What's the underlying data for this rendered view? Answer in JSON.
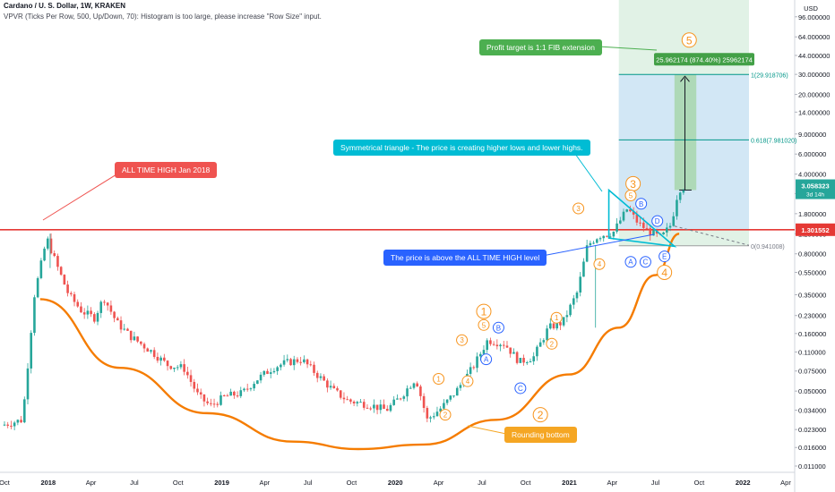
{
  "header": {
    "title": "Cardano / U. S. Dollar, 1W, KRAKEN",
    "indicator": "VPVR (Ticks Per Row, 500, Up/Down, 70): Histogram is too large, please increase \"Row Size\" input."
  },
  "colors": {
    "candle_up": "#26a69a",
    "candle_down": "#ef5350",
    "ath_line": "#e53935",
    "arc": "#f57c00",
    "wave_orange": "#f7941d",
    "wave_blue": "#2962ff",
    "triangle": "#00bcd4",
    "fib_green": "#009688",
    "target_bg": "#c8e6c9",
    "zone_blue": "#bbdefb"
  },
  "chart_data": {
    "type": "candlestick",
    "y_scale": "log",
    "ylim": [
      0.0108,
      130
    ],
    "y_axis_label_top": "USD",
    "y_ticks": [
      "96.000000",
      "64.000000",
      "44.000000",
      "30.000000",
      "20.000000",
      "14.000000",
      "9.000000",
      "6.000000",
      "4.000000",
      "2.700000",
      "1.800000",
      "1.200000",
      "0.800000",
      "0.550000",
      "0.350000",
      "0.230000",
      "0.160000",
      "0.110000",
      "0.075000",
      "0.050000",
      "0.034000",
      "0.023000",
      "0.016000",
      "0.011000"
    ],
    "x_ticks": [
      "Oct",
      "2018",
      "Apr",
      "Jul",
      "Oct",
      "2019",
      "Apr",
      "Jul",
      "Oct",
      "2020",
      "Apr",
      "Jul",
      "Oct",
      "2021",
      "Apr",
      "Jul",
      "Oct",
      "2022",
      "Apr"
    ],
    "price_path": [
      [
        "2017-10-01",
        0.025
      ],
      [
        "2017-11-15",
        0.028
      ],
      [
        "2017-12-10",
        0.35
      ],
      [
        "2018-01-05",
        1.1
      ],
      [
        "2018-01-25",
        0.65
      ],
      [
        "2018-02-20",
        0.35
      ],
      [
        "2018-03-20",
        0.25
      ],
      [
        "2018-04-15",
        0.22
      ],
      [
        "2018-05-05",
        0.33
      ],
      [
        "2018-06-01",
        0.2
      ],
      [
        "2018-07-01",
        0.15
      ],
      [
        "2018-08-15",
        0.11
      ],
      [
        "2018-09-15",
        0.085
      ],
      [
        "2018-10-20",
        0.08
      ],
      [
        "2018-11-20",
        0.045
      ],
      [
        "2018-12-15",
        0.037
      ],
      [
        "2019-01-15",
        0.045
      ],
      [
        "2019-02-20",
        0.048
      ],
      [
        "2019-03-20",
        0.062
      ],
      [
        "2019-04-25",
        0.08
      ],
      [
        "2019-05-20",
        0.088
      ],
      [
        "2019-06-25",
        0.095
      ],
      [
        "2019-07-30",
        0.068
      ],
      [
        "2019-09-01",
        0.05
      ],
      [
        "2019-10-01",
        0.041
      ],
      [
        "2019-11-15",
        0.038
      ],
      [
        "2019-12-20",
        0.034
      ],
      [
        "2020-01-20",
        0.045
      ],
      [
        "2020-02-20",
        0.065
      ],
      [
        "2020-03-15",
        0.028
      ],
      [
        "2020-04-15",
        0.036
      ],
      [
        "2020-05-15",
        0.05
      ],
      [
        "2020-06-20",
        0.082
      ],
      [
        "2020-07-20",
        0.14
      ],
      [
        "2020-08-25",
        0.13
      ],
      [
        "2020-09-25",
        0.09
      ],
      [
        "2020-10-25",
        0.1
      ],
      [
        "2020-11-25",
        0.18
      ],
      [
        "2020-12-25",
        0.2
      ],
      [
        "2021-01-25",
        0.37
      ],
      [
        "2021-02-15",
        0.95
      ],
      [
        "2021-03-10",
        1.15
      ],
      [
        "2021-04-10",
        1.23
      ],
      [
        "2021-05-10",
        2.0
      ],
      [
        "2021-06-01",
        1.5
      ],
      [
        "2021-06-25",
        1.25
      ],
      [
        "2021-07-20",
        1.1
      ],
      [
        "2021-08-10",
        1.45
      ],
      [
        "2021-08-25",
        2.9
      ],
      [
        "2021-09-01",
        3.058323
      ]
    ],
    "last_price": "3.058323",
    "countdown": "3d 14h",
    "ath_level": "1.301552",
    "fib_levels": [
      {
        "ratio": "1",
        "price": "29.918706",
        "label": "1(29.918706)"
      },
      {
        "ratio": "0.618",
        "price": "7.981020",
        "label": "0.618(7.981020)"
      },
      {
        "ratio": "0",
        "price": "0.941008",
        "label": "0(0.941008)"
      }
    ],
    "target_label": "25.962174 (874.40%) 25962174",
    "rounding_bottom": [
      [
        "2017-12-15",
        0.32
      ],
      [
        "2018-06-01",
        0.08
      ],
      [
        "2018-12-01",
        0.032
      ],
      [
        "2019-06-01",
        0.018
      ],
      [
        "2019-10-15",
        0.0155
      ],
      [
        "2020-03-01",
        0.017
      ],
      [
        "2020-08-01",
        0.028
      ],
      [
        "2021-01-01",
        0.07
      ],
      [
        "2021-04-15",
        0.18
      ],
      [
        "2021-07-01",
        0.52
      ],
      [
        "2021-08-20",
        1.2
      ]
    ],
    "waves": [
      {
        "text": "1",
        "style": "orange-circle-lg",
        "at": [
          "2020-07-05",
          0.25
        ]
      },
      {
        "text": "2",
        "style": "orange-circle-lg",
        "at": [
          "2020-11-01",
          0.031
        ]
      },
      {
        "text": "3",
        "style": "orange-circle-lg",
        "at": [
          "2021-05-15",
          3.3
        ]
      },
      {
        "text": "4",
        "style": "orange-circle-lg",
        "at": [
          "2021-07-20",
          0.55
        ]
      },
      {
        "text": "5",
        "style": "orange-circle-lg",
        "at": [
          "2021-09-10",
          60
        ]
      },
      {
        "text": "1",
        "style": "orange-circle",
        "at": [
          "2020-04-01",
          0.064
        ]
      },
      {
        "text": "2",
        "style": "orange-circle",
        "at": [
          "2020-04-15",
          0.031
        ]
      },
      {
        "text": "3",
        "style": "orange-circle",
        "at": [
          "2020-05-20",
          0.14
        ]
      },
      {
        "text": "4",
        "style": "orange-circle",
        "at": [
          "2020-06-01",
          0.061
        ]
      },
      {
        "text": "5",
        "style": "orange-circle",
        "at": [
          "2020-07-05",
          0.19
        ]
      },
      {
        "text": "1",
        "style": "orange-circle",
        "at": [
          "2020-12-05",
          0.22
        ]
      },
      {
        "text": "2",
        "style": "orange-circle",
        "at": [
          "2020-11-25",
          0.13
        ]
      },
      {
        "text": "3",
        "style": "orange-circle",
        "at": [
          "2021-01-20",
          2.0
        ]
      },
      {
        "text": "4",
        "style": "orange-circle",
        "at": [
          "2021-03-05",
          0.65
        ]
      },
      {
        "text": "5",
        "style": "orange-circle",
        "at": [
          "2021-05-10",
          2.6
        ]
      },
      {
        "text": "A",
        "style": "blue-circle",
        "at": [
          "2020-07-10",
          0.095
        ]
      },
      {
        "text": "B",
        "style": "blue-circle",
        "at": [
          "2020-08-05",
          0.18
        ]
      },
      {
        "text": "C",
        "style": "blue-circle",
        "at": [
          "2020-09-20",
          0.053
        ]
      },
      {
        "text": "A",
        "style": "blue-circle",
        "at": [
          "2021-05-10",
          0.68
        ]
      },
      {
        "text": "B",
        "style": "blue-circle",
        "at": [
          "2021-06-01",
          2.2
        ]
      },
      {
        "text": "C",
        "style": "blue-circle",
        "at": [
          "2021-06-10",
          0.68
        ]
      },
      {
        "text": "D",
        "style": "blue-circle",
        "at": [
          "2021-07-05",
          1.55
        ]
      },
      {
        "text": "E",
        "style": "blue-circle",
        "at": [
          "2021-07-20",
          0.76
        ]
      }
    ],
    "annotations": {
      "ath": "ALL TIME HIGH Jan 2018",
      "triangle": "Symmetrical triangle - The price is creating higher lows and lower highs.",
      "above_ath": "The price is above the ALL TIME HIGH level",
      "target": "Profit target is 1:1 FIB extension",
      "rounding": "Rounding bottom"
    }
  }
}
